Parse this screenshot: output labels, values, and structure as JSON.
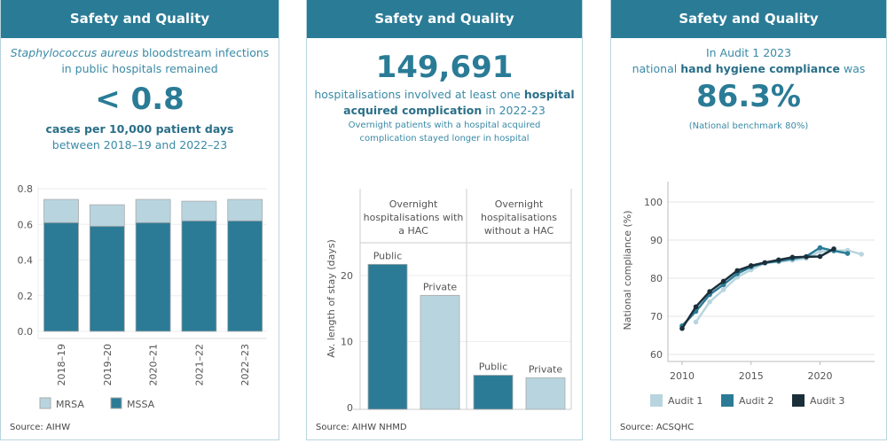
{
  "colors": {
    "header": "#2a7b96",
    "dark_teal": "#2b7b96",
    "light_blue": "#b8d5df",
    "navy": "#1b2f3a"
  },
  "panels": [
    {
      "title": "Safety and Quality",
      "intro_italic": "Staphylococcus aureus",
      "intro_rest": "bloodstream infections",
      "intro_line2": "in public hospitals remained",
      "headline": "< 0.8",
      "sub_bold": "cases per 10,000 patient days",
      "sub_line2": "between 2018–19 and 2022–23",
      "source": "Source: AIHW"
    },
    {
      "title": "Safety and Quality",
      "headline": "149,691",
      "text1": "hospitalisations involved at least one",
      "text1_bold": "hospital",
      "text2_bold": "acquired complication",
      "text2": "in 2022-23",
      "note1": "Overnight patients with a hospital acquired",
      "note2": "complication stayed longer in hospital",
      "source": "Source: AIHW NHMD"
    },
    {
      "title": "Safety and Quality",
      "text1": "In Audit 1 2023",
      "text2a": "national",
      "text2_bold": "hand hygiene compliance",
      "text2b": "was",
      "headline": "86.3%",
      "note": "(National benchmark 80%)",
      "source": "Source: ACSQHC"
    }
  ],
  "chart_data": [
    {
      "type": "bar",
      "stacked": true,
      "categories": [
        "2018–19",
        "2019–20",
        "2020–21",
        "2021–22",
        "2022–23"
      ],
      "series": [
        {
          "name": "MSSA",
          "values": [
            0.61,
            0.59,
            0.61,
            0.62,
            0.62
          ]
        },
        {
          "name": "MRSA",
          "values": [
            0.13,
            0.12,
            0.13,
            0.11,
            0.12
          ]
        }
      ],
      "ylim": [
        0,
        0.8
      ],
      "yticks": [
        "0.0",
        "0.2",
        "0.4",
        "0.6",
        "0.8"
      ],
      "legend": "bottom",
      "grid": true
    },
    {
      "type": "bar",
      "ylabel": "Av. length of stay (days)",
      "ylim": [
        0,
        25
      ],
      "yticks": [
        "0",
        "10",
        "20"
      ],
      "groups": [
        {
          "label": "Overnight hospitalisations with a HAC",
          "label_lines": [
            "Overnight",
            "hospitalisations with",
            "a HAC"
          ],
          "bars": [
            {
              "label": "Public",
              "value": 21.7
            },
            {
              "label": "Private",
              "value": 17.0
            }
          ]
        },
        {
          "label": "Overnight hospitalisations without a HAC",
          "label_lines": [
            "Overnight",
            "hospitalisations",
            "without a HAC"
          ],
          "bars": [
            {
              "label": "Public",
              "value": 4.9
            },
            {
              "label": "Private",
              "value": 4.5
            }
          ]
        }
      ],
      "grid": true
    },
    {
      "type": "line",
      "ylabel": "National compliance (%)",
      "xlim": [
        2009.5,
        2024
      ],
      "ylim": [
        58,
        105
      ],
      "xticks": [
        "2010",
        "2015",
        "2020"
      ],
      "yticks": [
        "60",
        "70",
        "80",
        "90",
        "100"
      ],
      "legend": "bottom",
      "grid": true,
      "series": [
        {
          "name": "Audit 1",
          "x": [
            2011,
            2012,
            2013,
            2014,
            2015,
            2016,
            2017,
            2018,
            2019,
            2020,
            2021,
            2022,
            2023
          ],
          "y": [
            68.5,
            73.8,
            77,
            80.3,
            82.2,
            84,
            84.3,
            84.7,
            85.2,
            87,
            87.2,
            87.3,
            86.3
          ]
        },
        {
          "name": "Audit 2",
          "x": [
            2010,
            2011,
            2012,
            2013,
            2014,
            2015,
            2016,
            2017,
            2018,
            2019,
            2020,
            2021,
            2022
          ],
          "y": [
            67.5,
            71.3,
            75.7,
            78.3,
            81.2,
            83,
            84,
            84.5,
            85.1,
            85.7,
            88,
            87.2,
            86.5
          ]
        },
        {
          "name": "Audit 3",
          "x": [
            2010,
            2011,
            2012,
            2013,
            2014,
            2015,
            2016,
            2017,
            2018,
            2019,
            2020,
            2021
          ],
          "y": [
            66.8,
            72.5,
            76.5,
            79.2,
            82,
            83.3,
            84.1,
            84.8,
            85.5,
            85.6,
            85.7,
            87.7
          ]
        }
      ]
    }
  ]
}
